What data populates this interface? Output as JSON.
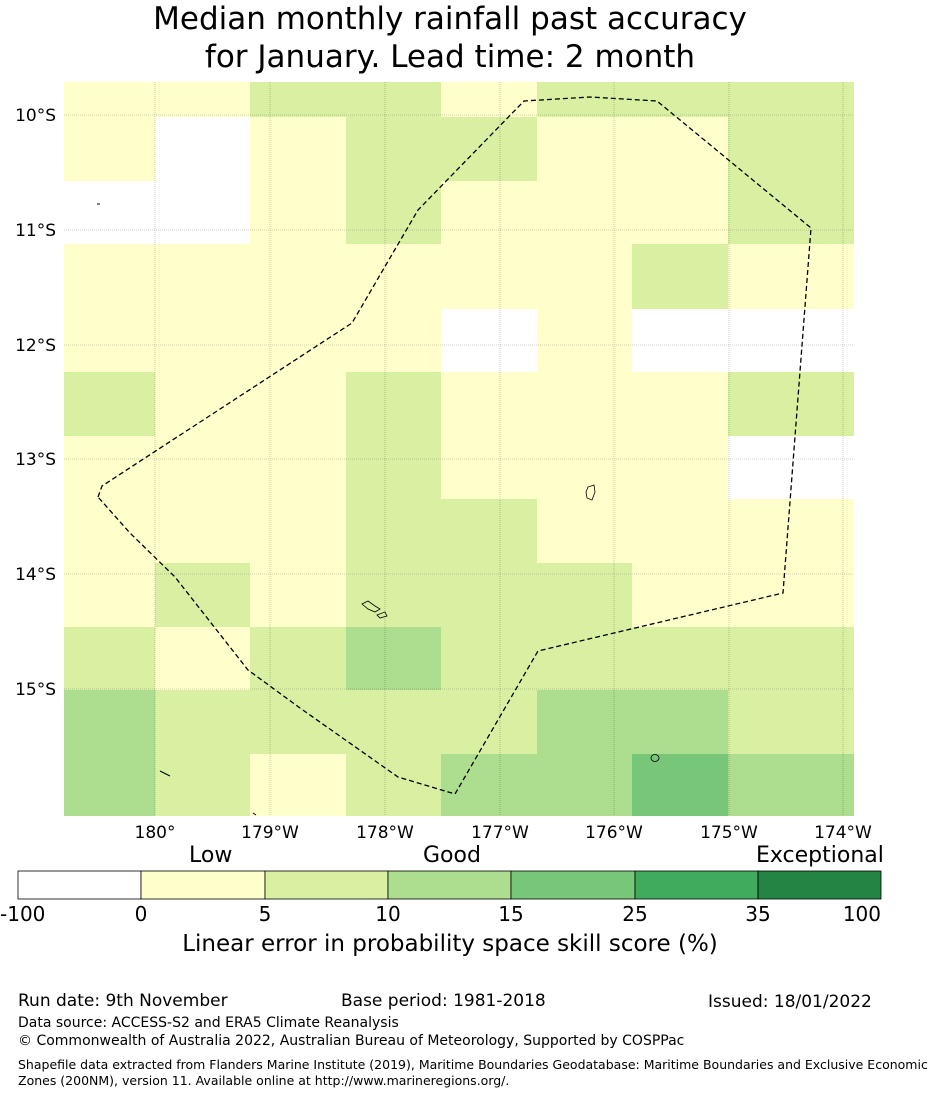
{
  "title": {
    "line1": "Median monthly rainfall past accuracy",
    "line2": "for January. Lead time: 2 month"
  },
  "map": {
    "lat_labels": [
      "10°S",
      "11°S",
      "12°S",
      "13°S",
      "14°S",
      "15°S"
    ],
    "lon_labels": [
      "180°",
      "179°W",
      "178°W",
      "177°W",
      "176°W",
      "175°W",
      "174°W"
    ],
    "grid_rows": [
      [
        1,
        1,
        2,
        2,
        1,
        2,
        2,
        2
      ],
      [
        1,
        0,
        1,
        2,
        2,
        1,
        1,
        2
      ],
      [
        0,
        0,
        1,
        2,
        1,
        1,
        1,
        2
      ],
      [
        1,
        1,
        1,
        1,
        1,
        1,
        2,
        1
      ],
      [
        1,
        1,
        1,
        1,
        0,
        1,
        0,
        0
      ],
      [
        2,
        1,
        1,
        2,
        1,
        1,
        1,
        2
      ],
      [
        1,
        1,
        1,
        2,
        1,
        1,
        1,
        0
      ],
      [
        1,
        1,
        1,
        2,
        2,
        1,
        1,
        1
      ],
      [
        1,
        2,
        1,
        2,
        2,
        2,
        1,
        1
      ],
      [
        2,
        1,
        2,
        3,
        2,
        2,
        2,
        2
      ],
      [
        3,
        2,
        2,
        2,
        2,
        3,
        3,
        2
      ],
      [
        3,
        2,
        1,
        2,
        3,
        3,
        4,
        3
      ]
    ],
    "colors": [
      "#ffffff",
      "#ffffcc",
      "#d9f0a3",
      "#addd8e",
      "#78c679",
      "#41ab5d",
      "#238443"
    ]
  },
  "colorbar": {
    "category_labels": [
      "Low",
      "Good",
      "Exceptional"
    ],
    "ticks": [
      "-100",
      "0",
      "5",
      "10",
      "15",
      "25",
      "35",
      "100"
    ],
    "title": "Linear error in probability space skill score (%)"
  },
  "footer": {
    "run_date": "Run date: 9th November",
    "base_period": "Base period: 1981-2018",
    "issued": "Issued: 18/01/2022",
    "data_source": "Data source: ACCESS-S2 and ERA5 Climate Reanalysis",
    "copyright": "© Commonwealth of Australia 2022, Australian Bureau of Meteorology, Supported by COSPPac",
    "shapefile_line1": "Shapefile data extracted from Flanders Marine Institute (2019), Maritime Boundaries Geodatabase: Maritime Boundaries and Exclusive Economic",
    "shapefile_line2": "Zones (200NM), version 11. Available online at http://www.marineregions.org/."
  }
}
